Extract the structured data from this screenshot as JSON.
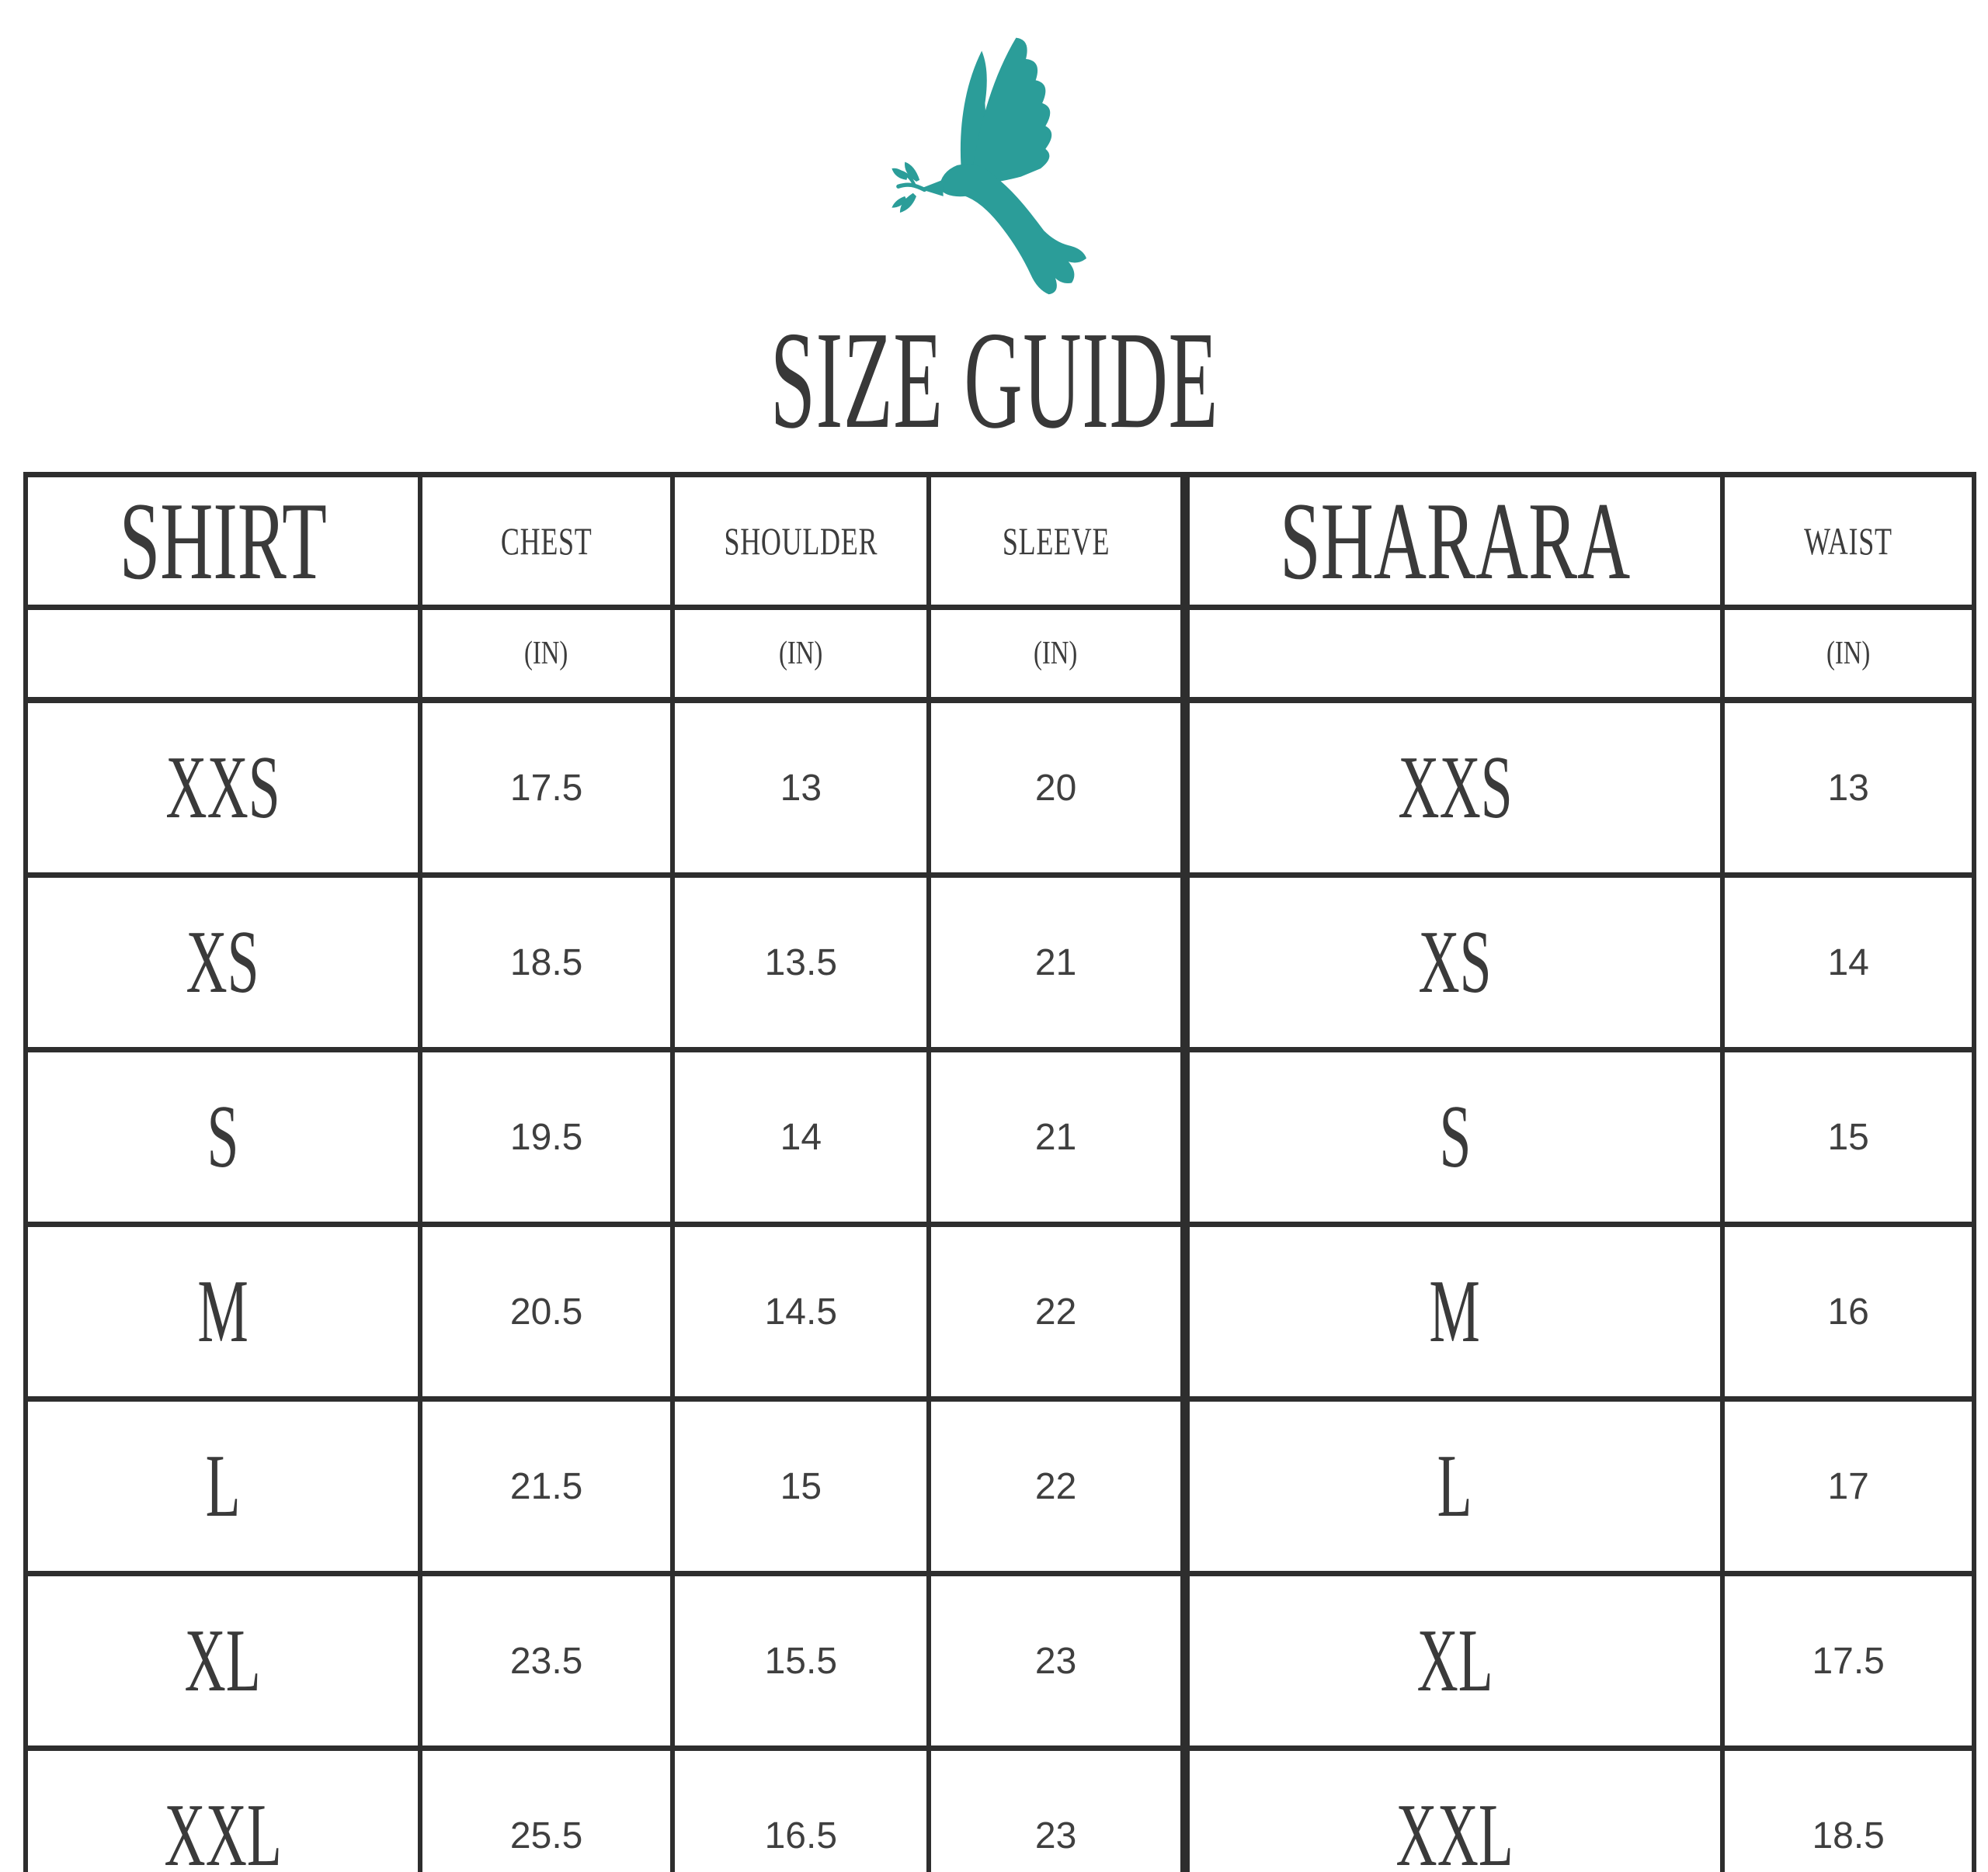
{
  "title": "SIZE GUIDE",
  "logo": {
    "icon": "dove-with-olive-branch",
    "color": "#2B9D99"
  },
  "theme": {
    "accent": "#2B9D99",
    "text": "#3A3A3A",
    "border": "#2E2E2E",
    "background": "#FFFFFF"
  },
  "tables": [
    {
      "name": "SHIRT",
      "columns": [
        "CHEST",
        "SHOULDER",
        "SLEEVE"
      ],
      "units": [
        "(IN)",
        "(IN)",
        "(IN)"
      ],
      "rows": [
        {
          "size": "XXS",
          "values": [
            "17.5",
            "13",
            "20"
          ]
        },
        {
          "size": "XS",
          "values": [
            "18.5",
            "13.5",
            "21"
          ]
        },
        {
          "size": "S",
          "values": [
            "19.5",
            "14",
            "21"
          ]
        },
        {
          "size": "M",
          "values": [
            "20.5",
            "14.5",
            "22"
          ]
        },
        {
          "size": "L",
          "values": [
            "21.5",
            "15",
            "22"
          ]
        },
        {
          "size": "XL",
          "values": [
            "23.5",
            "15.5",
            "23"
          ]
        },
        {
          "size": "XXL",
          "values": [
            "25.5",
            "16.5",
            "23"
          ]
        }
      ]
    },
    {
      "name": "SHARARA",
      "columns": [
        "WAIST"
      ],
      "units": [
        "(IN)"
      ],
      "rows": [
        {
          "size": "XXS",
          "values": [
            "13"
          ]
        },
        {
          "size": "XS",
          "values": [
            "14"
          ]
        },
        {
          "size": "S",
          "values": [
            "15"
          ]
        },
        {
          "size": "M",
          "values": [
            "16"
          ]
        },
        {
          "size": "L",
          "values": [
            "17"
          ]
        },
        {
          "size": "XL",
          "values": [
            "17.5"
          ]
        },
        {
          "size": "XXL",
          "values": [
            "18.5"
          ]
        }
      ]
    }
  ]
}
